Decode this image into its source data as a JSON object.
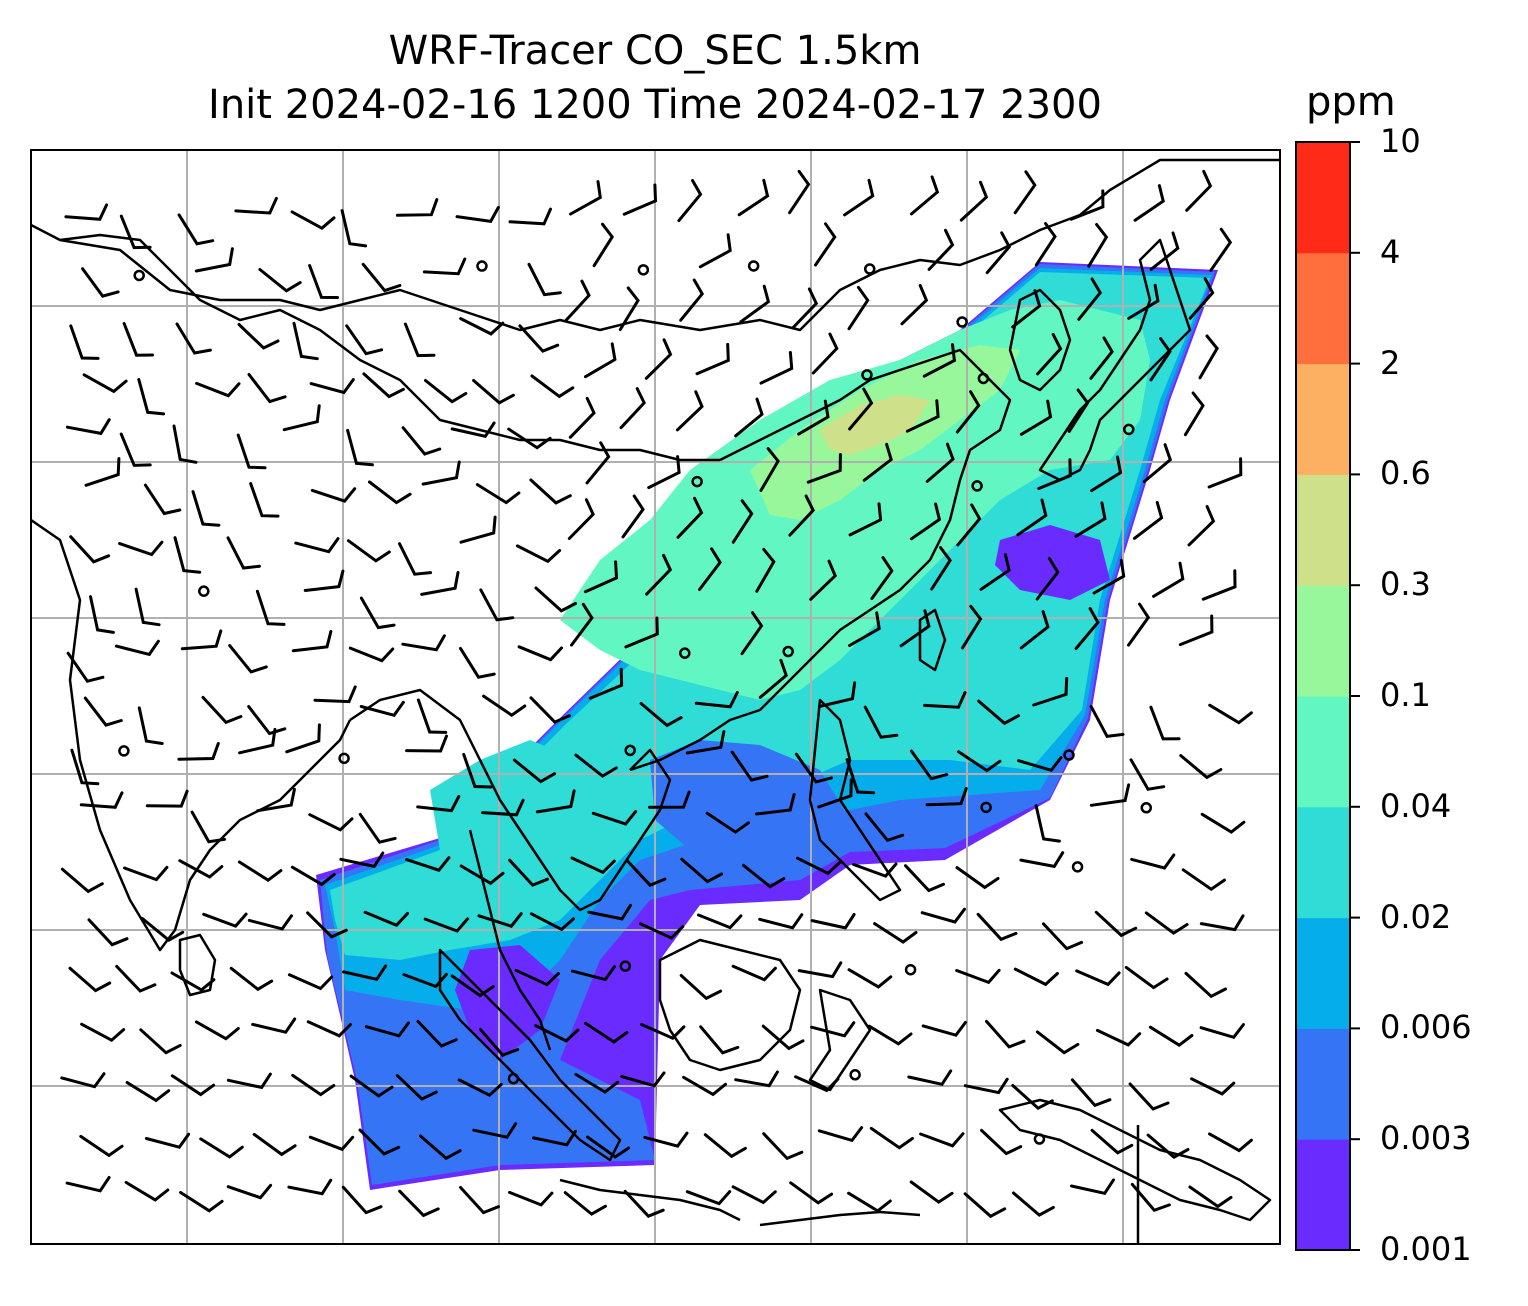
{
  "title": {
    "line1": "WRF-Tracer CO_SEC 1.5km",
    "line2": "Init 2024-02-16 1200 Time 2024-02-17 2300"
  },
  "colorbar": {
    "unit": "ppm",
    "ticks": [
      "0.001",
      "0.003",
      "0.006",
      "0.02",
      "0.04",
      "0.1",
      "0.3",
      "0.6",
      "2",
      "4",
      "10"
    ],
    "colors": [
      "#6a2bff",
      "#3575f5",
      "#05aeea",
      "#2fdcd6",
      "#62f7c2",
      "#97f79a",
      "#cfe08a",
      "#feb062",
      "#fe6f3d",
      "#ff2a17"
    ]
  },
  "map": {
    "gridlines": true,
    "field_colors": {
      "lowest": "#6a2bff",
      "low": "#3575f5",
      "mid_low": "#05aeea",
      "mid": "#2fdcd6",
      "mid_high": "#62f7c2",
      "high": "#97f79a",
      "highest": "#cfe08a"
    },
    "barb_color": "#000000",
    "coast_color": "#000000"
  }
}
